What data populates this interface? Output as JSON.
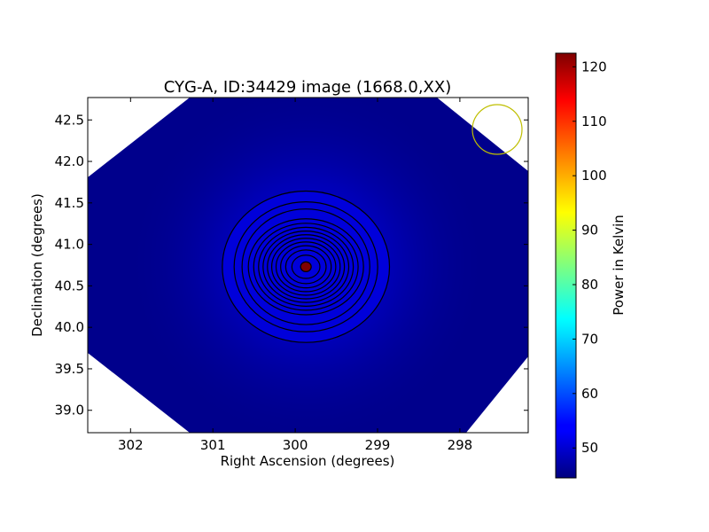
{
  "chart_data": {
    "type": "heatmap",
    "title": "CYG-A, ID:34429 image (1668.0,XX)",
    "xlabel": "Right Ascension (degrees)",
    "ylabel": "Declination (degrees)",
    "x_inverted": true,
    "xlim": [
      302.52,
      297.17
    ],
    "ylim": [
      38.73,
      42.77
    ],
    "xticks": [
      302,
      301,
      300,
      299,
      298
    ],
    "yticks": [
      "39.0",
      "39.5",
      "40.0",
      "40.5",
      "41.0",
      "41.5",
      "42.0",
      "42.5"
    ],
    "colorbar": {
      "label": "Power in Kelvin",
      "range": [
        44.5,
        122.5
      ],
      "ticks": [
        50,
        60,
        70,
        80,
        90,
        100,
        110,
        120
      ],
      "colormap": "jet"
    },
    "source": {
      "name": "CYG-A",
      "ra": 299.87,
      "dec": 40.73,
      "peak_kelvin": 122
    },
    "background_kelvin": 46,
    "contour_levels": 13,
    "beam_marker": {
      "ra": 297.6,
      "dec": 42.35,
      "color": "#bfbf00"
    },
    "grid": false
  }
}
